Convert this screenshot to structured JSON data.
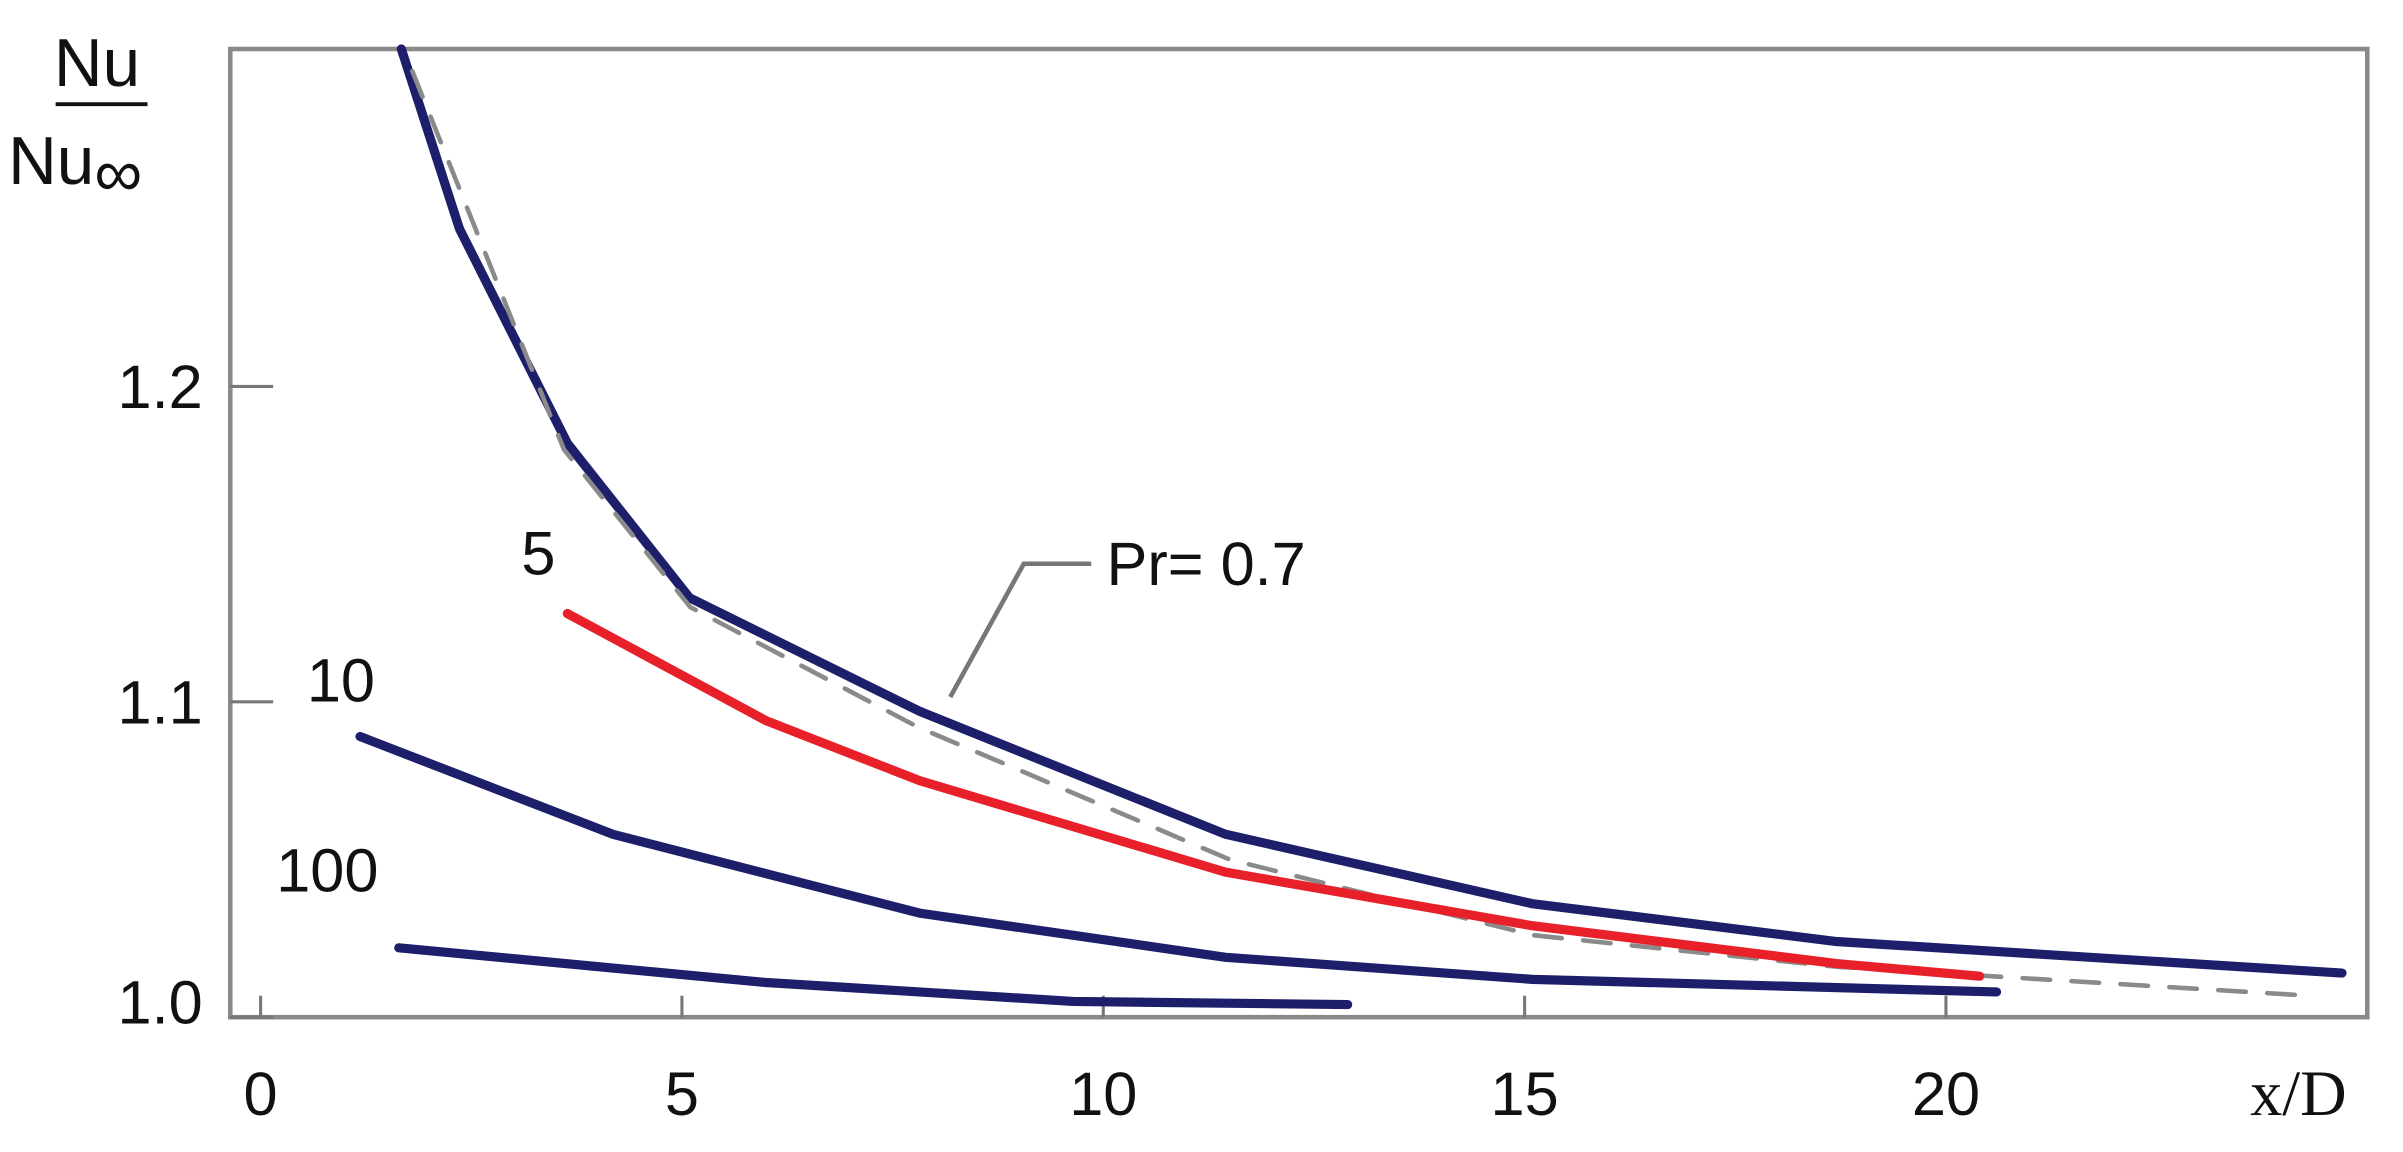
{
  "chart_data": {
    "type": "line",
    "ylabel": {
      "top": "Nu",
      "bottom": "Nu",
      "bottom_sub": "∞"
    },
    "xlabel": "x/D",
    "xlim": [
      -0.36,
      25
    ],
    "ylim": [
      1.0,
      1.307
    ],
    "xticks": [
      0,
      5,
      10,
      15,
      20
    ],
    "yticks": [
      {
        "value": 1,
        "label": "1.0"
      },
      1.1,
      1.2
    ],
    "series": [
      {
        "label": "Pr= 0.7",
        "color": "#1e1f6b",
        "dashed": false,
        "x": [
          1.67,
          2.36,
          3.64,
          5.09,
          7.82,
          11.45,
          15.09,
          18.7,
          24.7
        ],
        "values": [
          1.307,
          1.25,
          1.182,
          1.133,
          1.097,
          1.058,
          1.036,
          1.024,
          1.014
        ]
      },
      {
        "color": "#8a8a8a",
        "dashed": true,
        "x": [
          1.8,
          3.6,
          5.1,
          7.8,
          11.5,
          15.1,
          18.7,
          24.2
        ],
        "values": [
          1.3,
          1.18,
          1.13,
          1.092,
          1.05,
          1.026,
          1.016,
          1.007
        ]
      },
      {
        "label": "5",
        "color": "#e8202a",
        "dashed": false,
        "x": [
          3.64,
          6,
          7.82,
          11.45,
          15.09,
          18.7,
          20.4
        ],
        "values": [
          1.128,
          1.094,
          1.075,
          1.046,
          1.029,
          1.017,
          1.013
        ]
      },
      {
        "label": "10",
        "color": "#1e1f6b",
        "dashed": false,
        "x": [
          1.18,
          4.18,
          7.82,
          11.45,
          15.09,
          20.6
        ],
        "values": [
          1.089,
          1.058,
          1.033,
          1.019,
          1.012,
          1.008
        ]
      },
      {
        "label": "100",
        "color": "#1e1f6b",
        "dashed": false,
        "x": [
          1.64,
          6,
          9.64,
          12.9
        ],
        "values": [
          1.022,
          1.011,
          1.005,
          1.004
        ]
      }
    ]
  }
}
